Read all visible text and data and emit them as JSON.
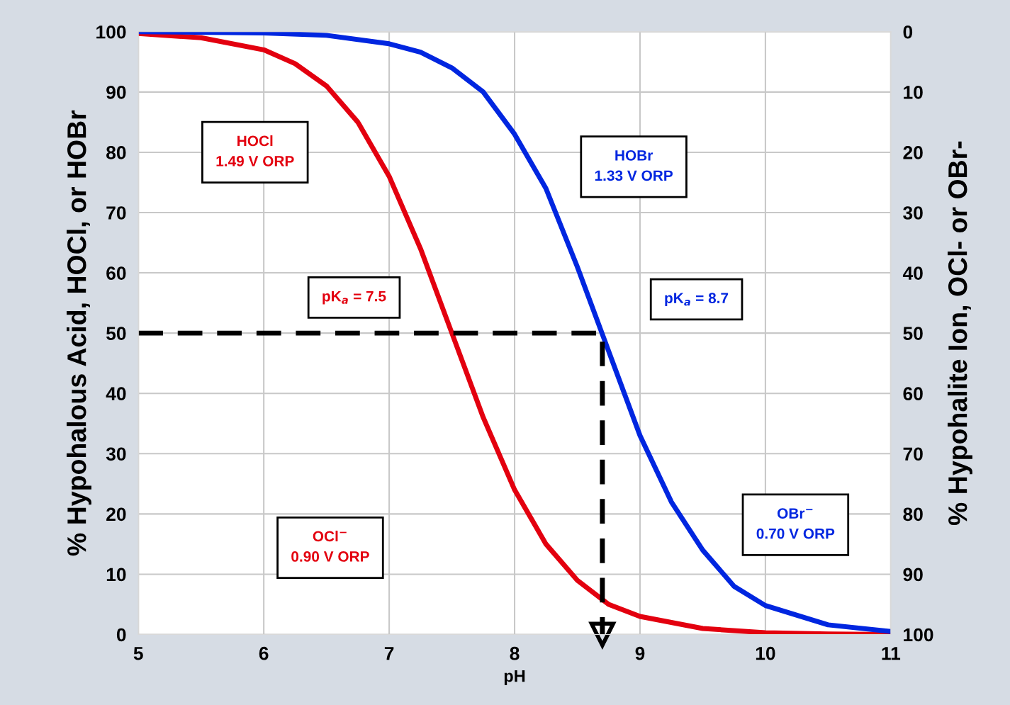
{
  "chart_data": {
    "type": "line",
    "xlabel": "pH",
    "ylabel": "% Hypohalous Acid, HOCl, or HOBr",
    "y2label": "% Hypohalite Ion, OCl- or OBr-",
    "xlim": [
      5,
      11
    ],
    "xticks": [
      5,
      6,
      7,
      8,
      9,
      10,
      11
    ],
    "ylim": [
      0,
      100
    ],
    "yticks": [
      0,
      10,
      20,
      30,
      40,
      50,
      60,
      70,
      80,
      90,
      100
    ],
    "y2lim": [
      100,
      0
    ],
    "y2ticks": [
      0,
      10,
      20,
      30,
      40,
      50,
      60,
      70,
      80,
      90,
      100
    ],
    "grid": true,
    "legend": false,
    "line_style": "solid",
    "marker": "none",
    "series": [
      {
        "color": "#e3000f",
        "x": [
          5,
          5.5,
          6,
          6.25,
          6.5,
          6.75,
          7,
          7.25,
          7.5,
          7.75,
          8,
          8.25,
          8.5,
          8.75,
          9,
          9.5,
          10,
          10.5,
          11
        ],
        "values": [
          99.7,
          99,
          97,
          94.7,
          91,
          85,
          76,
          64,
          50,
          36,
          24,
          15,
          9,
          5,
          3,
          1,
          0.3,
          0.1,
          0
        ]
      },
      {
        "color": "#0026e0",
        "x": [
          5,
          6,
          6.5,
          7,
          7.25,
          7.5,
          7.75,
          8,
          8.25,
          8.5,
          8.75,
          9,
          9.25,
          9.5,
          9.75,
          10,
          10.5,
          11
        ],
        "values": [
          100,
          99.8,
          99.4,
          98,
          96.6,
          94,
          90,
          83,
          74,
          61,
          47,
          33,
          22,
          14,
          8,
          4.8,
          1.6,
          0.5
        ]
      },
      {
        "color": "#000000",
        "line_style": "dashed",
        "x": [
          5,
          8.7,
          8.7
        ],
        "values": [
          50,
          50,
          0
        ]
      }
    ],
    "annotations": [
      "HOCl\n1.49 V ORP",
      "HOBr\n1.33 V ORP",
      "pK$_{a}$ = 7.5",
      "pK$_{a}$ = 8.7",
      "OCl$^{−}$\n0.90 V ORP",
      "OBr$^{−}$\n0.70 V ORP"
    ]
  }
}
